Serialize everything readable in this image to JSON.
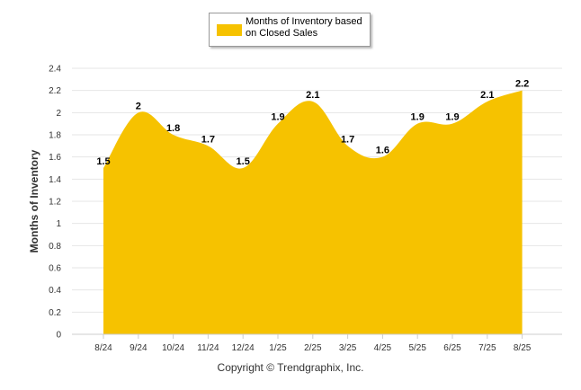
{
  "chart_data": {
    "type": "area",
    "categories": [
      "8/24",
      "9/24",
      "10/24",
      "11/24",
      "12/24",
      "1/25",
      "2/25",
      "3/25",
      "4/25",
      "5/25",
      "6/25",
      "7/25",
      "8/25"
    ],
    "series": [
      {
        "name": "Months of Inventory based on Closed Sales",
        "values": [
          1.5,
          2,
          1.8,
          1.7,
          1.5,
          1.9,
          2.1,
          1.7,
          1.6,
          1.9,
          1.9,
          2.1,
          2.2
        ],
        "labels": [
          "1.5",
          "2",
          "1.8",
          "1.7",
          "1.5",
          "1.9",
          "2.1",
          "1.7",
          "1.6",
          "1.9",
          "1.9",
          "2.1",
          "2.2"
        ]
      }
    ],
    "ylabel": "Months of Inventory",
    "xlabel": "",
    "ylim": [
      0,
      2.4
    ],
    "yticks": [
      0,
      0.2,
      0.4,
      0.6,
      0.8,
      1,
      1.2,
      1.4,
      1.6,
      1.8,
      2,
      2.2,
      2.4
    ],
    "ytick_labels": [
      "0",
      "0.2",
      "0.4",
      "0.6",
      "0.8",
      "1",
      "1.2",
      "1.4",
      "1.6",
      "1.8",
      "2",
      "2.2",
      "2.4"
    ],
    "grid": true,
    "legend": "top-center",
    "colors": {
      "fill": "#F6C200",
      "grid": "#e6e6e6",
      "axis": "#cccccc",
      "text": "#333333"
    }
  },
  "legend": {
    "line1": "Months of Inventory based",
    "line2": "on Closed Sales"
  },
  "footer": {
    "copyright": "Copyright © Trendgraphix, Inc."
  }
}
